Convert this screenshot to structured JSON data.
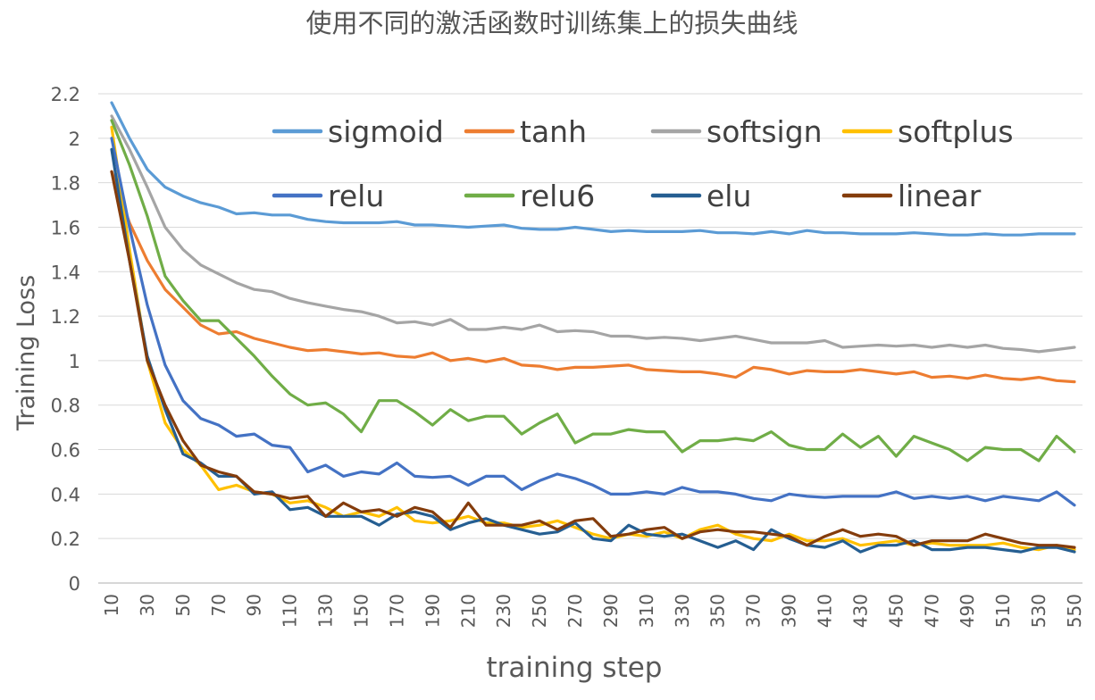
{
  "chart_data": {
    "type": "line",
    "title": "使用不同的激活函数时训练集上的损失曲线",
    "xlabel": "training step",
    "ylabel": "Training  Loss",
    "ylim": [
      0,
      2.2
    ],
    "yticks": [
      "0",
      "0.2",
      "0.4",
      "0.6",
      "0.8",
      "1",
      "1.2",
      "1.4",
      "1.6",
      "1.8",
      "2",
      "2.2"
    ],
    "x": [
      10,
      20,
      30,
      40,
      50,
      60,
      70,
      80,
      90,
      100,
      110,
      120,
      130,
      140,
      150,
      160,
      170,
      180,
      190,
      200,
      210,
      220,
      230,
      240,
      250,
      260,
      270,
      280,
      290,
      300,
      310,
      320,
      330,
      340,
      350,
      360,
      370,
      380,
      390,
      400,
      410,
      420,
      430,
      440,
      450,
      460,
      470,
      480,
      490,
      500,
      510,
      520,
      530,
      540,
      550
    ],
    "xtick_labels": [
      "10",
      "30",
      "50",
      "70",
      "90",
      "110",
      "130",
      "150",
      "170",
      "190",
      "210",
      "230",
      "250",
      "270",
      "290",
      "310",
      "330",
      "350",
      "370",
      "390",
      "410",
      "430",
      "450",
      "470",
      "490",
      "510",
      "530",
      "550"
    ],
    "grid": "horizontal",
    "legend_position": "top, inside plot, 4 columns x 2 rows",
    "series": [
      {
        "name": "sigmoid",
        "color": "#5b9bd5",
        "values": [
          2.16,
          2.0,
          1.86,
          1.78,
          1.74,
          1.71,
          1.69,
          1.66,
          1.665,
          1.655,
          1.655,
          1.635,
          1.625,
          1.62,
          1.62,
          1.62,
          1.625,
          1.61,
          1.61,
          1.605,
          1.6,
          1.605,
          1.61,
          1.595,
          1.59,
          1.59,
          1.6,
          1.59,
          1.58,
          1.585,
          1.58,
          1.58,
          1.58,
          1.585,
          1.575,
          1.575,
          1.57,
          1.58,
          1.57,
          1.585,
          1.575,
          1.575,
          1.57,
          1.57,
          1.57,
          1.575,
          1.57,
          1.565,
          1.565,
          1.57,
          1.565,
          1.565,
          1.57,
          1.57,
          1.57
        ]
      },
      {
        "name": "tanh",
        "color": "#ed7d31",
        "values": [
          1.85,
          1.62,
          1.45,
          1.32,
          1.24,
          1.16,
          1.12,
          1.13,
          1.1,
          1.08,
          1.06,
          1.045,
          1.05,
          1.04,
          1.03,
          1.035,
          1.02,
          1.015,
          1.035,
          1.0,
          1.01,
          0.995,
          1.01,
          0.98,
          0.975,
          0.96,
          0.97,
          0.97,
          0.975,
          0.98,
          0.96,
          0.955,
          0.95,
          0.95,
          0.94,
          0.925,
          0.97,
          0.96,
          0.94,
          0.955,
          0.95,
          0.95,
          0.96,
          0.95,
          0.94,
          0.95,
          0.925,
          0.93,
          0.92,
          0.935,
          0.92,
          0.915,
          0.925,
          0.91,
          0.905
        ]
      },
      {
        "name": "softsign",
        "color": "#a5a5a5",
        "values": [
          2.1,
          1.95,
          1.78,
          1.6,
          1.5,
          1.43,
          1.39,
          1.35,
          1.32,
          1.31,
          1.28,
          1.26,
          1.245,
          1.23,
          1.22,
          1.2,
          1.17,
          1.175,
          1.16,
          1.185,
          1.14,
          1.14,
          1.15,
          1.14,
          1.16,
          1.13,
          1.135,
          1.13,
          1.11,
          1.11,
          1.1,
          1.105,
          1.1,
          1.09,
          1.1,
          1.11,
          1.095,
          1.08,
          1.08,
          1.08,
          1.09,
          1.06,
          1.065,
          1.07,
          1.065,
          1.07,
          1.06,
          1.07,
          1.06,
          1.07,
          1.055,
          1.05,
          1.04,
          1.05,
          1.06
        ]
      },
      {
        "name": "softplus",
        "color": "#ffc000",
        "values": [
          2.05,
          1.5,
          1.0,
          0.72,
          0.6,
          0.53,
          0.42,
          0.44,
          0.41,
          0.4,
          0.36,
          0.37,
          0.34,
          0.3,
          0.32,
          0.3,
          0.34,
          0.28,
          0.27,
          0.28,
          0.3,
          0.27,
          0.27,
          0.25,
          0.26,
          0.28,
          0.25,
          0.22,
          0.2,
          0.22,
          0.21,
          0.23,
          0.2,
          0.24,
          0.26,
          0.22,
          0.2,
          0.19,
          0.22,
          0.19,
          0.19,
          0.2,
          0.17,
          0.18,
          0.19,
          0.17,
          0.18,
          0.17,
          0.17,
          0.17,
          0.18,
          0.16,
          0.15,
          0.17,
          0.15
        ]
      },
      {
        "name": "relu",
        "color": "#4472c4",
        "values": [
          2.0,
          1.6,
          1.25,
          0.98,
          0.82,
          0.74,
          0.71,
          0.66,
          0.67,
          0.62,
          0.61,
          0.5,
          0.53,
          0.48,
          0.5,
          0.49,
          0.54,
          0.48,
          0.475,
          0.48,
          0.44,
          0.48,
          0.48,
          0.42,
          0.46,
          0.49,
          0.47,
          0.44,
          0.4,
          0.4,
          0.41,
          0.4,
          0.43,
          0.41,
          0.41,
          0.4,
          0.38,
          0.37,
          0.4,
          0.39,
          0.385,
          0.39,
          0.39,
          0.39,
          0.41,
          0.38,
          0.39,
          0.38,
          0.39,
          0.37,
          0.39,
          0.38,
          0.37,
          0.41,
          0.35
        ]
      },
      {
        "name": "relu6",
        "color": "#70ad47",
        "values": [
          2.08,
          1.88,
          1.65,
          1.38,
          1.27,
          1.18,
          1.18,
          1.1,
          1.02,
          0.93,
          0.85,
          0.8,
          0.81,
          0.76,
          0.68,
          0.82,
          0.82,
          0.77,
          0.71,
          0.78,
          0.73,
          0.75,
          0.75,
          0.67,
          0.72,
          0.76,
          0.63,
          0.67,
          0.67,
          0.69,
          0.68,
          0.68,
          0.59,
          0.64,
          0.64,
          0.65,
          0.64,
          0.68,
          0.62,
          0.6,
          0.6,
          0.67,
          0.61,
          0.66,
          0.57,
          0.66,
          0.63,
          0.6,
          0.55,
          0.61,
          0.6,
          0.6,
          0.55,
          0.66,
          0.59
        ]
      },
      {
        "name": "elu",
        "color": "#255e91",
        "values": [
          1.95,
          1.45,
          1.02,
          0.78,
          0.58,
          0.54,
          0.48,
          0.48,
          0.4,
          0.41,
          0.33,
          0.34,
          0.3,
          0.3,
          0.3,
          0.26,
          0.31,
          0.32,
          0.3,
          0.24,
          0.27,
          0.29,
          0.26,
          0.24,
          0.22,
          0.23,
          0.27,
          0.2,
          0.19,
          0.26,
          0.22,
          0.21,
          0.22,
          0.19,
          0.16,
          0.19,
          0.15,
          0.24,
          0.2,
          0.17,
          0.16,
          0.19,
          0.14,
          0.17,
          0.17,
          0.19,
          0.15,
          0.15,
          0.16,
          0.16,
          0.15,
          0.14,
          0.16,
          0.16,
          0.14
        ]
      },
      {
        "name": "linear",
        "color": "#843c0c",
        "values": [
          1.85,
          1.45,
          1.0,
          0.8,
          0.64,
          0.53,
          0.5,
          0.48,
          0.41,
          0.4,
          0.38,
          0.39,
          0.3,
          0.36,
          0.32,
          0.33,
          0.3,
          0.34,
          0.32,
          0.25,
          0.36,
          0.26,
          0.26,
          0.26,
          0.28,
          0.24,
          0.28,
          0.29,
          0.21,
          0.22,
          0.24,
          0.25,
          0.2,
          0.23,
          0.24,
          0.23,
          0.23,
          0.22,
          0.21,
          0.17,
          0.21,
          0.24,
          0.21,
          0.22,
          0.21,
          0.17,
          0.19,
          0.19,
          0.19,
          0.22,
          0.2,
          0.18,
          0.17,
          0.17,
          0.16
        ]
      }
    ]
  }
}
